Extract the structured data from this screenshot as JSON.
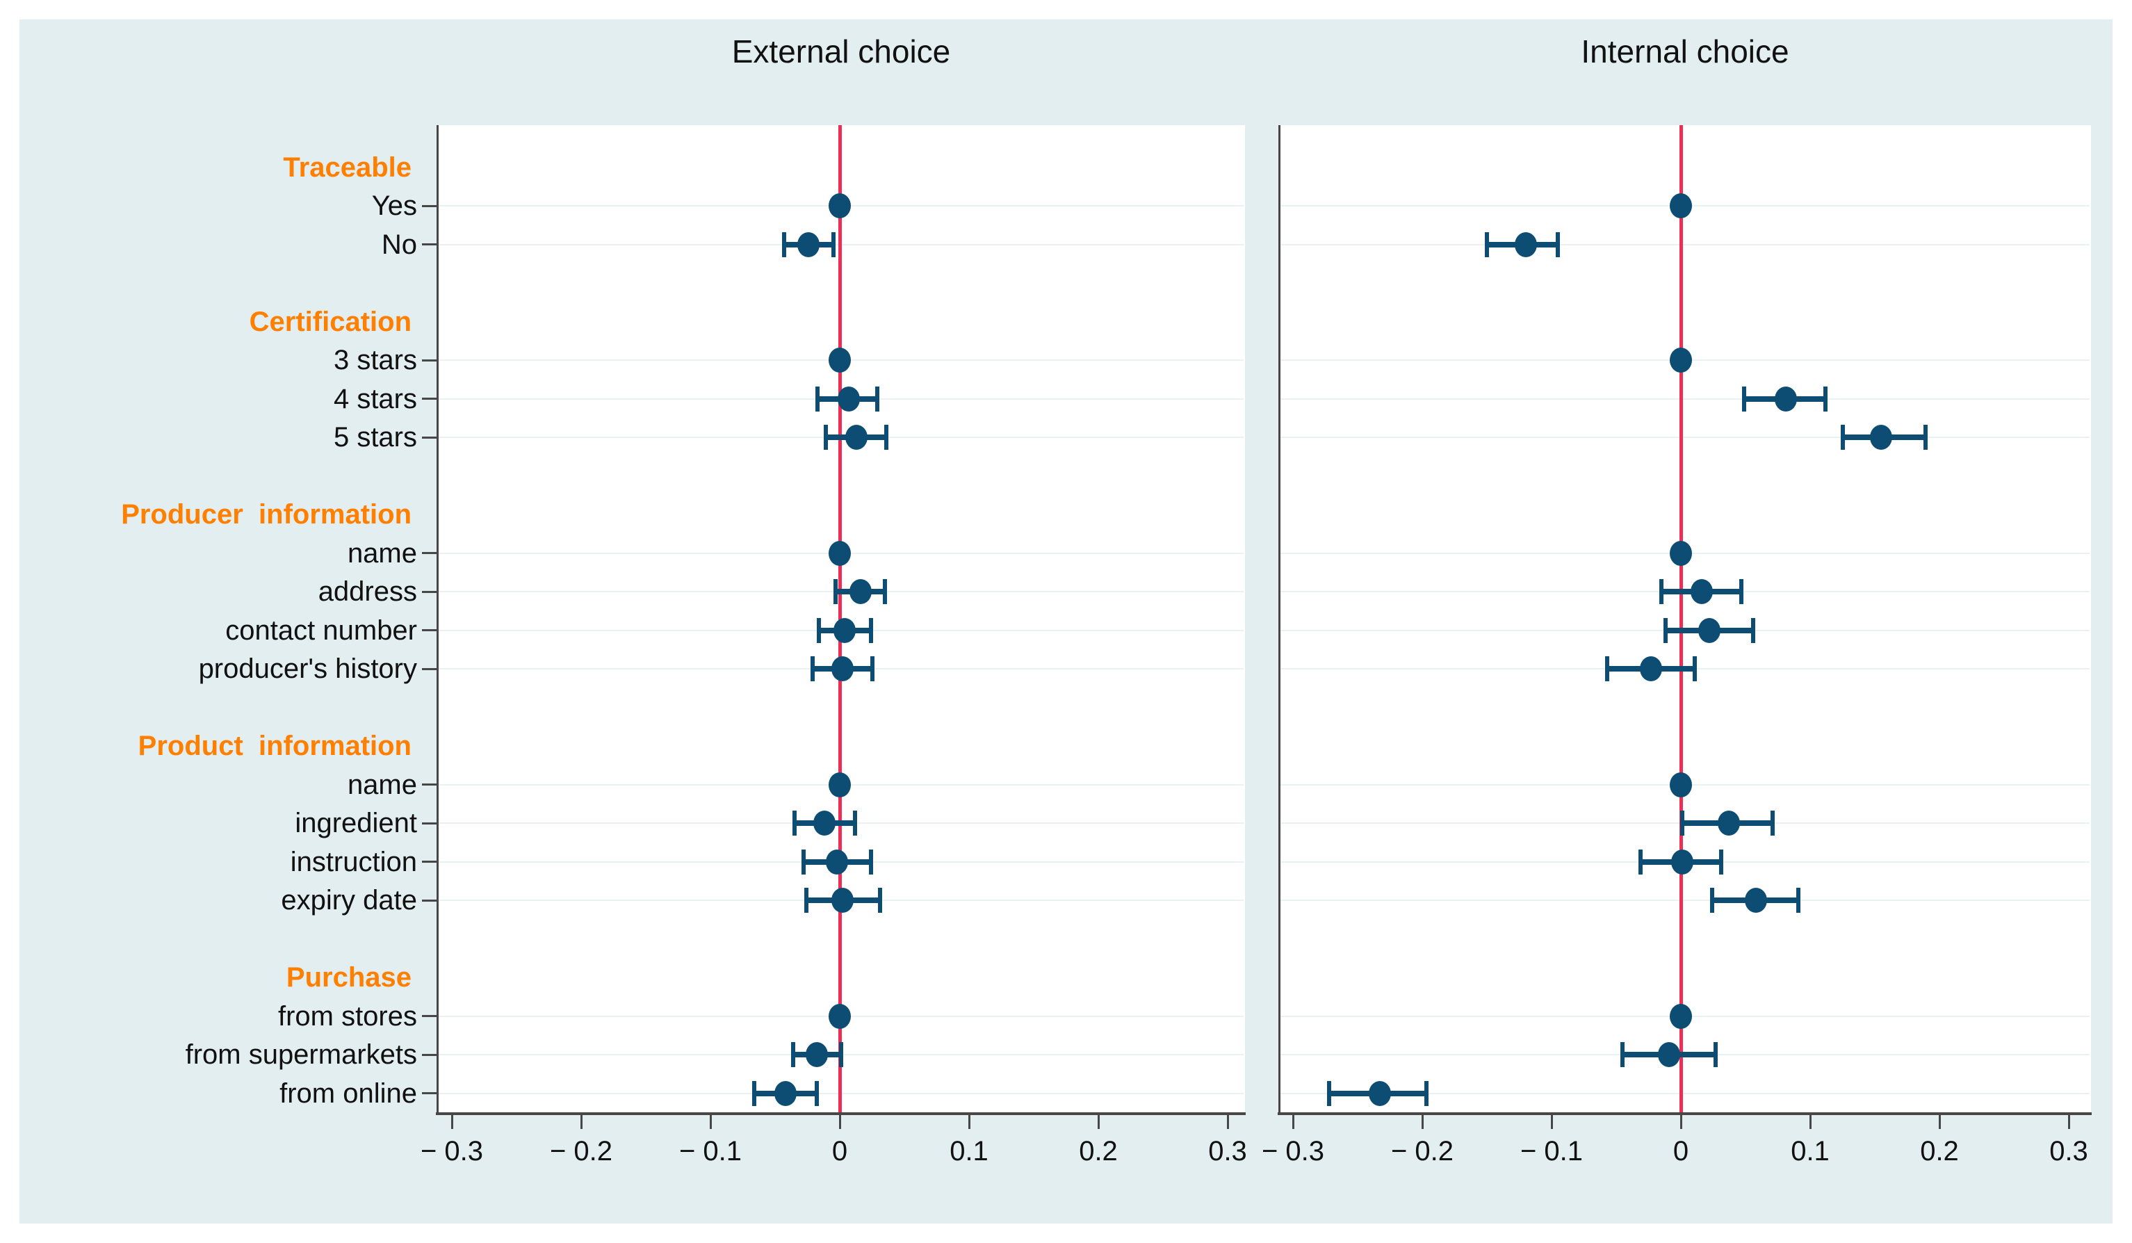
{
  "chart_data": {
    "type": "scatter",
    "subtype": "forest-dot-whisker",
    "title": "",
    "xlabel": "",
    "ylabel": "",
    "grid": true,
    "legend": "none",
    "zero_line": 0,
    "xlim": [
      -0.31,
      0.31
    ],
    "x_ticks": [
      -0.3,
      -0.2,
      -0.1,
      0,
      0.1,
      0.2,
      0.3
    ],
    "x_tick_labels": [
      "− 0.3",
      "− 0.2",
      "− 0.1",
      "0",
      "0.1",
      "0.2",
      "0.3"
    ],
    "rows": [
      {
        "kind": "group",
        "label": "Traceable"
      },
      {
        "kind": "item",
        "label": "Yes"
      },
      {
        "kind": "item",
        "label": "No"
      },
      {
        "kind": "blank",
        "label": ""
      },
      {
        "kind": "group",
        "label": "Certification"
      },
      {
        "kind": "item",
        "label": "3 stars"
      },
      {
        "kind": "item",
        "label": "4 stars"
      },
      {
        "kind": "item",
        "label": "5 stars"
      },
      {
        "kind": "blank",
        "label": ""
      },
      {
        "kind": "group",
        "label": "Producer  information"
      },
      {
        "kind": "item",
        "label": "name"
      },
      {
        "kind": "item",
        "label": "address"
      },
      {
        "kind": "item",
        "label": "contact number"
      },
      {
        "kind": "item",
        "label": "producer's history"
      },
      {
        "kind": "blank",
        "label": ""
      },
      {
        "kind": "group",
        "label": "Product  information"
      },
      {
        "kind": "item",
        "label": "name"
      },
      {
        "kind": "item",
        "label": "ingredient"
      },
      {
        "kind": "item",
        "label": "instruction"
      },
      {
        "kind": "item",
        "label": "expiry date"
      },
      {
        "kind": "blank",
        "label": ""
      },
      {
        "kind": "group",
        "label": "Purchase"
      },
      {
        "kind": "item",
        "label": "from stores"
      },
      {
        "kind": "item",
        "label": "from supermarkets"
      },
      {
        "kind": "item",
        "label": "from online"
      }
    ],
    "panels": [
      {
        "title": "External choice",
        "series": [
          {
            "label": "Yes",
            "est": 0,
            "lo": 0,
            "hi": 0,
            "ref": true
          },
          {
            "label": "No",
            "est": -0.024,
            "lo": -0.043,
            "hi": -0.005,
            "ref": false
          },
          {
            "label": "3 stars",
            "est": 0,
            "lo": 0,
            "hi": 0,
            "ref": true
          },
          {
            "label": "4 stars",
            "est": 0.007,
            "lo": -0.017,
            "hi": 0.029,
            "ref": false
          },
          {
            "label": "5 stars",
            "est": 0.013,
            "lo": -0.011,
            "hi": 0.036,
            "ref": false
          },
          {
            "label": "name",
            "est": 0,
            "lo": 0,
            "hi": 0,
            "ref": true
          },
          {
            "label": "address",
            "est": 0.016,
            "lo": -0.003,
            "hi": 0.035,
            "ref": false
          },
          {
            "label": "contact number",
            "est": 0.004,
            "lo": -0.016,
            "hi": 0.024,
            "ref": false
          },
          {
            "label": "producer's history",
            "est": 0.002,
            "lo": -0.021,
            "hi": 0.025,
            "ref": false
          },
          {
            "label": "name",
            "est": 0,
            "lo": 0,
            "hi": 0,
            "ref": true
          },
          {
            "label": "ingredient",
            "est": -0.012,
            "lo": -0.035,
            "hi": 0.012,
            "ref": false
          },
          {
            "label": "instruction",
            "est": -0.002,
            "lo": -0.028,
            "hi": 0.024,
            "ref": false
          },
          {
            "label": "expiry date",
            "est": 0.002,
            "lo": -0.026,
            "hi": 0.031,
            "ref": false
          },
          {
            "label": "from stores",
            "est": 0,
            "lo": 0,
            "hi": 0,
            "ref": true
          },
          {
            "label": "from supermarkets",
            "est": -0.018,
            "lo": -0.036,
            "hi": 0.001,
            "ref": false
          },
          {
            "label": "from online",
            "est": -0.042,
            "lo": -0.066,
            "hi": -0.018,
            "ref": false
          }
        ]
      },
      {
        "title": "Internal choice",
        "series": [
          {
            "label": "Yes",
            "est": 0,
            "lo": 0,
            "hi": 0,
            "ref": true
          },
          {
            "label": "No",
            "est": -0.12,
            "lo": -0.15,
            "hi": -0.095,
            "ref": false
          },
          {
            "label": "3 stars",
            "est": 0,
            "lo": 0,
            "hi": 0,
            "ref": true
          },
          {
            "label": "4 stars",
            "est": 0.081,
            "lo": 0.049,
            "hi": 0.112,
            "ref": false
          },
          {
            "label": "5 stars",
            "est": 0.155,
            "lo": 0.125,
            "hi": 0.189,
            "ref": false
          },
          {
            "label": "name",
            "est": 0,
            "lo": 0,
            "hi": 0,
            "ref": true
          },
          {
            "label": "address",
            "est": 0.016,
            "lo": -0.015,
            "hi": 0.047,
            "ref": false
          },
          {
            "label": "contact number",
            "est": 0.022,
            "lo": -0.012,
            "hi": 0.056,
            "ref": false
          },
          {
            "label": "producer's history",
            "est": -0.023,
            "lo": -0.057,
            "hi": 0.011,
            "ref": false
          },
          {
            "label": "name",
            "est": 0,
            "lo": 0,
            "hi": 0,
            "ref": true
          },
          {
            "label": "ingredient",
            "est": 0.037,
            "lo": 0.001,
            "hi": 0.071,
            "ref": false
          },
          {
            "label": "instruction",
            "est": 0.001,
            "lo": -0.031,
            "hi": 0.031,
            "ref": false
          },
          {
            "label": "expiry date",
            "est": 0.058,
            "lo": 0.024,
            "hi": 0.091,
            "ref": false
          },
          {
            "label": "from stores",
            "est": 0,
            "lo": 0,
            "hi": 0,
            "ref": true
          },
          {
            "label": "from supermarkets",
            "est": -0.009,
            "lo": -0.045,
            "hi": 0.027,
            "ref": false
          },
          {
            "label": "from online",
            "est": -0.233,
            "lo": -0.272,
            "hi": -0.197,
            "ref": false
          }
        ]
      }
    ],
    "colors": {
      "figure_background": "#e3eef1",
      "panel_background": "#ffffff",
      "marker": "#0e4d73",
      "zero_line": "#ef2d55",
      "group_label": "#ff7f00",
      "item_label": "#111111",
      "axis": "#474747",
      "gridline": "#e9f1f3"
    }
  }
}
